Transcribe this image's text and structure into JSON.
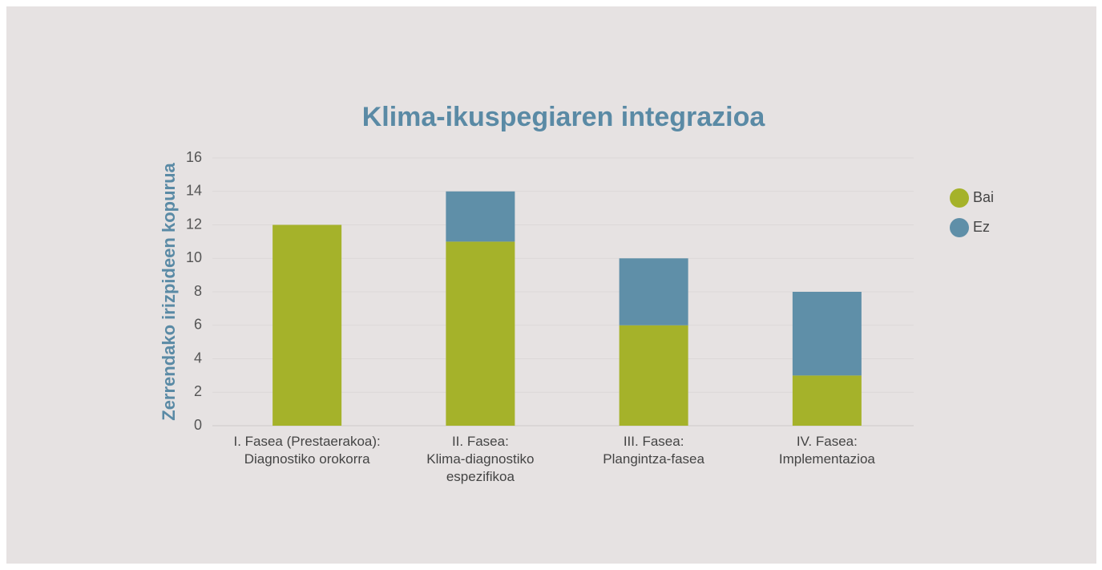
{
  "chart_data": {
    "type": "stacked_bar",
    "title": "Klima-ikuspegiaren integrazioa",
    "y_label": "Zerrendako irizpideen kopurua",
    "categories": [
      "I. Fasea (Prestaerakoa):\nDiagnostiko orokorra",
      "II. Fasea:\nKlima-diagnostiko\nespezifikoa",
      "III. Fasea:\nPlangintza-fasea",
      "IV. Fasea:\nImplementazioa"
    ],
    "series": [
      {
        "name": "Bai",
        "color": "#a5b22a",
        "values": [
          12,
          11,
          6,
          3
        ]
      },
      {
        "name": "Ez",
        "color": "#5f8fa8",
        "values": [
          0,
          3,
          4,
          5
        ]
      }
    ],
    "ylim": [
      0,
      16
    ],
    "yticks": [
      0,
      2,
      4,
      6,
      8,
      10,
      12,
      14,
      16
    ],
    "grid": true,
    "legend": "right"
  }
}
